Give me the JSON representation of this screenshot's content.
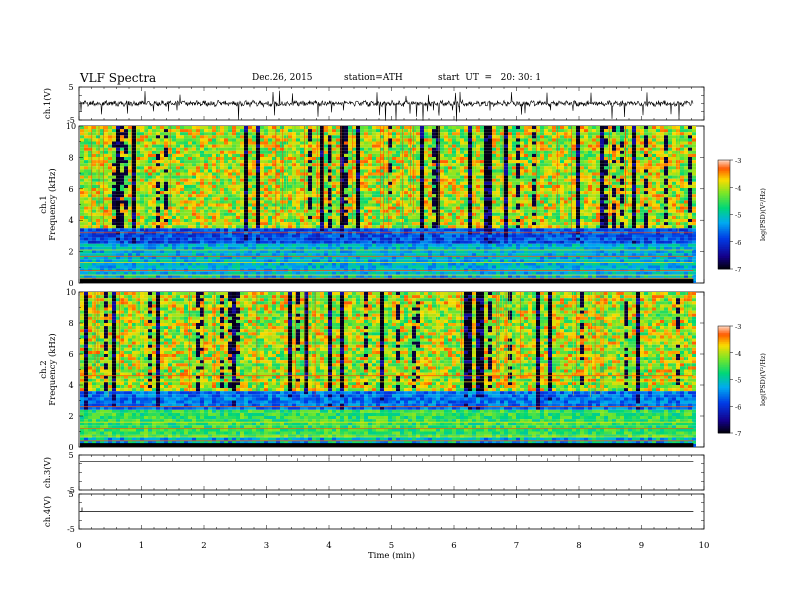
{
  "header": {
    "title": "VLF Spectra",
    "date": "Dec.26, 2015",
    "station": "station=ATH",
    "start": "start  UT  =   20: 30: 1"
  },
  "chart_data": [
    {
      "type": "line",
      "id": "ch1",
      "ylabel": "ch.1(V)",
      "ylim": [
        -5,
        5
      ],
      "yticks": [
        "5",
        "-5"
      ]
    },
    {
      "type": "heatmap",
      "id": "ch1-spectrogram",
      "ylabel": "ch.1\nFrequency (kHz)",
      "ylim": [
        0,
        10
      ],
      "yticks": [
        "0",
        "2",
        "4",
        "6",
        "8",
        "10"
      ],
      "colorbar": {
        "label": "log(PSD)(V²/Hz)",
        "range": [
          -7,
          -3
        ],
        "ticks": [
          "-3",
          "-4",
          "-5",
          "-6",
          "-7"
        ]
      }
    },
    {
      "type": "heatmap",
      "id": "ch2-spectrogram",
      "ylabel": "ch.2\nFrequency (kHz)",
      "ylim": [
        0,
        10
      ],
      "yticks": [
        "0",
        "2",
        "4",
        "6",
        "8",
        "10"
      ],
      "colorbar": {
        "label": "log(PSD)(V²/Hz)",
        "range": [
          -7,
          -3
        ],
        "ticks": [
          "-3",
          "-4",
          "-5",
          "-6",
          "-7"
        ]
      }
    },
    {
      "type": "line",
      "id": "ch3",
      "ylabel": "ch.3(V)",
      "ylim": [
        -5,
        5
      ],
      "yticks": [
        "5",
        "-5"
      ]
    },
    {
      "type": "line",
      "id": "ch4",
      "ylabel": "ch.4(V)",
      "ylim": [
        -5,
        5
      ],
      "yticks": [
        "5",
        "-5"
      ]
    }
  ],
  "xaxis": {
    "label": "Time  (min)",
    "range": [
      0,
      10
    ],
    "ticks": [
      "0",
      "1",
      "2",
      "3",
      "4",
      "5",
      "6",
      "7",
      "8",
      "9",
      "10"
    ],
    "data_end": 9.83
  }
}
